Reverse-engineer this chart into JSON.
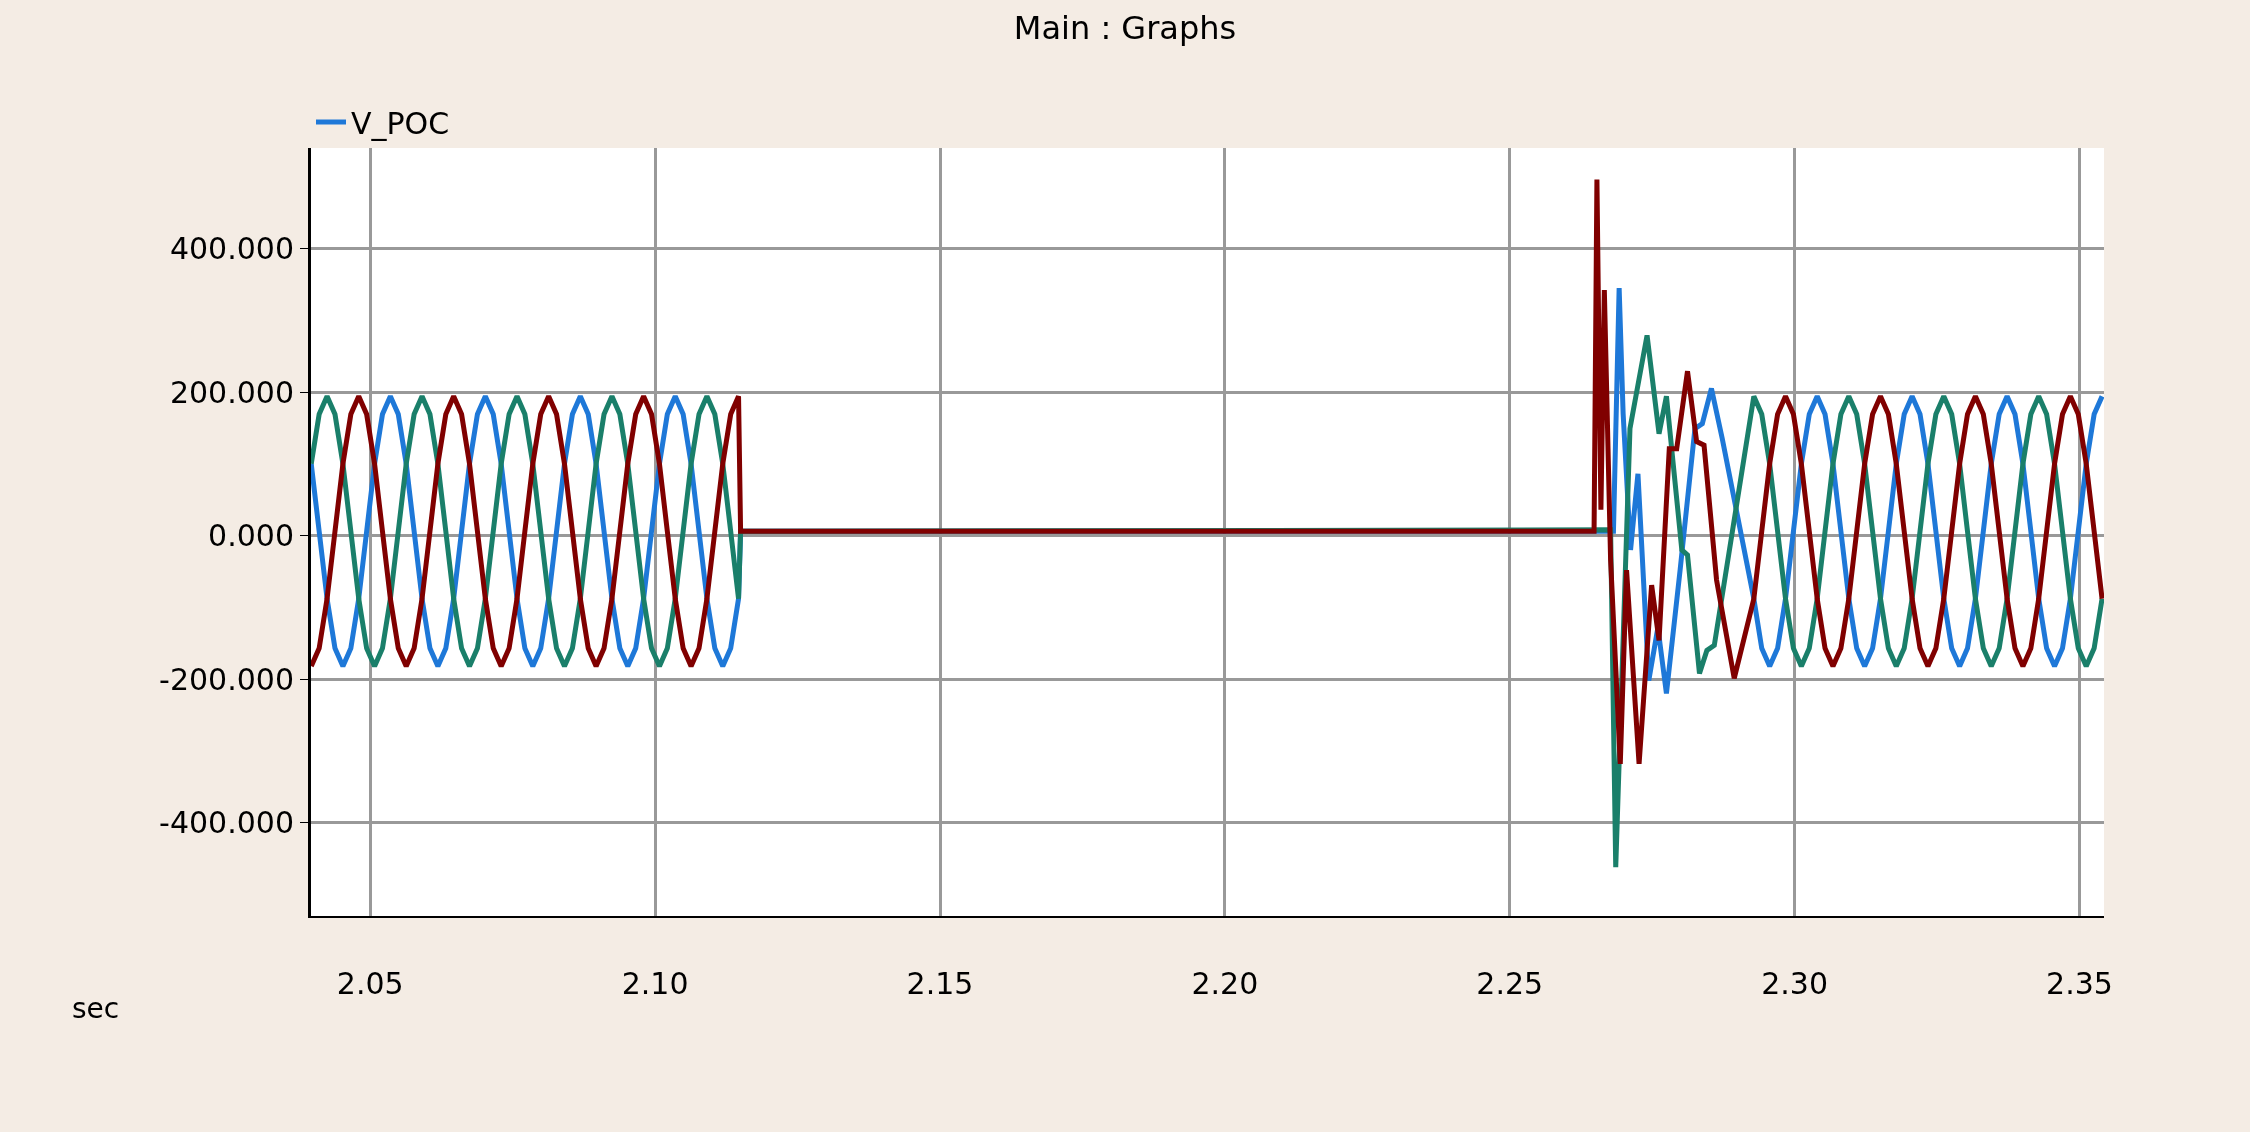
{
  "chart_data": {
    "type": "line",
    "title": "Main : Graphs",
    "xlabel": "sec",
    "legend": "top left",
    "grid": true,
    "marker": "none",
    "line_style": "solid",
    "xlim": [
      2.0396,
      2.3543
    ],
    "ylim": [
      -530,
      540
    ],
    "xticks": [
      {
        "value": 2.05,
        "label": "2.05"
      },
      {
        "value": 2.1,
        "label": "2.10"
      },
      {
        "value": 2.15,
        "label": "2.15"
      },
      {
        "value": 2.2,
        "label": "2.20"
      },
      {
        "value": 2.25,
        "label": "2.25"
      },
      {
        "value": 2.3,
        "label": "2.30"
      },
      {
        "value": 2.35,
        "label": "2.35"
      }
    ],
    "yticks": [
      {
        "value": -400,
        "label": "-400.000"
      },
      {
        "value": -200,
        "label": "-200.000"
      },
      {
        "value": 0,
        "label": "0.000"
      },
      {
        "value": 200,
        "label": "200.000"
      },
      {
        "value": 400,
        "label": "400.000"
      }
    ],
    "series": [
      {
        "name": "V_POC",
        "color": "#1e78d8",
        "x": [
          2.03964,
          2.04103,
          2.04242,
          2.04381,
          2.0452,
          2.04659,
          2.04798,
          2.04937,
          2.05076,
          2.05214,
          2.05353,
          2.05492,
          2.05631,
          2.0577,
          2.05909,
          2.06048,
          2.06187,
          2.06326,
          2.06464,
          2.06603,
          2.06742,
          2.06881,
          2.0702,
          2.07159,
          2.07298,
          2.07437,
          2.07576,
          2.07714,
          2.07853,
          2.07992,
          2.08131,
          2.0827,
          2.08409,
          2.08548,
          2.08687,
          2.08826,
          2.08964,
          2.09103,
          2.09242,
          2.09381,
          2.0952,
          2.09659,
          2.09798,
          2.09937,
          2.10076,
          2.10214,
          2.10353,
          2.10492,
          2.10631,
          2.1077,
          2.10909,
          2.11048,
          2.11187,
          2.11326,
          2.11464,
          2.115,
          2.2682,
          2.2692,
          2.2699,
          2.2712,
          2.2725,
          2.2744,
          2.276,
          2.2775,
          2.2799,
          2.2825,
          2.2838,
          2.2854,
          2.2873,
          2.29284,
          2.29423,
          2.29562,
          2.29701,
          2.2984,
          2.29979,
          2.30118,
          2.30257,
          2.30396,
          2.30534,
          2.30673,
          2.30812,
          2.30951,
          2.3109,
          2.31229,
          2.31368,
          2.31507,
          2.31646,
          2.31784,
          2.31923,
          2.32062,
          2.32201,
          2.3234,
          2.32479,
          2.32618,
          2.32757,
          2.32896,
          2.33034,
          2.33173,
          2.33312,
          2.33451,
          2.3359,
          2.33729,
          2.33868,
          2.34007,
          2.34146,
          2.34284,
          2.34423,
          2.34562,
          2.34701,
          2.3484,
          2.34979,
          2.35118,
          2.35257,
          2.35396
        ],
        "values": [
          100,
          6,
          -88,
          -157,
          -182,
          -157,
          -88,
          6,
          100,
          169,
          194,
          169,
          100,
          6,
          -88,
          -157,
          -182,
          -157,
          -88,
          6,
          100,
          169,
          194,
          169,
          100,
          6,
          -88,
          -157,
          -182,
          -157,
          -88,
          6,
          100,
          169,
          194,
          169,
          100,
          6,
          -88,
          -157,
          -182,
          -157,
          -88,
          6,
          100,
          169,
          194,
          169,
          100,
          6,
          -88,
          -157,
          -182,
          -157,
          -88,
          6,
          6,
          345,
          170,
          -20,
          86,
          -202,
          -128,
          -220,
          -48,
          149,
          156,
          205,
          135,
          -88,
          -157,
          -182,
          -157,
          -88,
          6,
          100,
          169,
          194,
          169,
          100,
          6,
          -88,
          -157,
          -182,
          -157,
          -88,
          6,
          100,
          169,
          194,
          169,
          100,
          6,
          -88,
          -157,
          -182,
          -157,
          -88,
          6,
          100,
          169,
          194,
          169,
          100,
          6,
          -88,
          -157,
          -182,
          -157,
          -88,
          6,
          100,
          169,
          194
        ]
      },
      {
        "color": "#1a7f6a",
        "x": [
          2.03964,
          2.04103,
          2.04242,
          2.04381,
          2.0452,
          2.04659,
          2.04798,
          2.04937,
          2.05076,
          2.05214,
          2.05353,
          2.05492,
          2.05631,
          2.0577,
          2.05909,
          2.06048,
          2.06187,
          2.06326,
          2.06464,
          2.06603,
          2.06742,
          2.06881,
          2.0702,
          2.07159,
          2.07298,
          2.07437,
          2.07576,
          2.07714,
          2.07853,
          2.07992,
          2.08131,
          2.0827,
          2.08409,
          2.08548,
          2.08687,
          2.08826,
          2.08964,
          2.09103,
          2.09242,
          2.09381,
          2.0952,
          2.09659,
          2.09798,
          2.09937,
          2.10076,
          2.10214,
          2.10353,
          2.10492,
          2.10631,
          2.1077,
          2.10909,
          2.11048,
          2.11187,
          2.11326,
          2.11464,
          2.115,
          2.2677,
          2.2686,
          2.2711,
          2.2741,
          2.2762,
          2.2775,
          2.2802,
          2.2812,
          2.2833,
          2.2846,
          2.2859,
          2.29284,
          2.29423,
          2.29562,
          2.29701,
          2.2984,
          2.29979,
          2.30118,
          2.30257,
          2.30396,
          2.30534,
          2.30673,
          2.30812,
          2.30951,
          2.3109,
          2.31229,
          2.31368,
          2.31507,
          2.31646,
          2.31784,
          2.31923,
          2.32062,
          2.32201,
          2.3234,
          2.32479,
          2.32618,
          2.32757,
          2.32896,
          2.33034,
          2.33173,
          2.33312,
          2.33451,
          2.3359,
          2.33729,
          2.33868,
          2.34007,
          2.34146,
          2.34284,
          2.34423,
          2.34562,
          2.34701,
          2.3484,
          2.34979,
          2.35118,
          2.35257,
          2.35396
        ],
        "values": [
          100,
          169,
          194,
          169,
          100,
          6,
          -88,
          -157,
          -182,
          -157,
          -88,
          6,
          100,
          169,
          194,
          169,
          100,
          6,
          -88,
          -157,
          -182,
          -157,
          -88,
          6,
          100,
          169,
          194,
          169,
          100,
          6,
          -88,
          -157,
          -182,
          -157,
          -88,
          6,
          100,
          169,
          194,
          169,
          100,
          6,
          -88,
          -157,
          -182,
          -157,
          -88,
          6,
          100,
          169,
          194,
          169,
          100,
          6,
          -88,
          6,
          8,
          -462,
          149,
          279,
          142,
          194,
          -20,
          -27,
          -192,
          -160,
          -153,
          194,
          169,
          100,
          6,
          -88,
          -157,
          -182,
          -157,
          -88,
          6,
          100,
          169,
          194,
          169,
          100,
          6,
          -88,
          -157,
          -182,
          -157,
          -88,
          6,
          100,
          169,
          194,
          169,
          100,
          6,
          -88,
          -157,
          -182,
          -157,
          -88,
          6,
          100,
          169,
          194,
          169,
          100,
          6,
          -88,
          -157,
          -182,
          -157,
          -88
        ]
      },
      {
        "color": "#800000",
        "x": [
          2.03964,
          2.04103,
          2.04242,
          2.04381,
          2.0452,
          2.04659,
          2.04798,
          2.04937,
          2.05076,
          2.05214,
          2.05353,
          2.05492,
          2.05631,
          2.0577,
          2.05909,
          2.06048,
          2.06187,
          2.06326,
          2.06464,
          2.06603,
          2.06742,
          2.06881,
          2.0702,
          2.07159,
          2.07298,
          2.07437,
          2.07576,
          2.07714,
          2.07853,
          2.07992,
          2.08131,
          2.0827,
          2.08409,
          2.08548,
          2.08687,
          2.08826,
          2.08964,
          2.09103,
          2.09242,
          2.09381,
          2.0952,
          2.09659,
          2.09798,
          2.09937,
          2.10076,
          2.10214,
          2.10353,
          2.10492,
          2.10631,
          2.1077,
          2.10909,
          2.11048,
          2.11187,
          2.11326,
          2.11464,
          2.115,
          2.2648,
          2.2653,
          2.266,
          2.2666,
          2.2677,
          2.2694,
          2.2705,
          2.2727,
          2.2749,
          2.2762,
          2.278,
          2.2793,
          2.2812,
          2.2828,
          2.2841,
          2.2863,
          2.2894,
          2.29284,
          2.29423,
          2.29562,
          2.29701,
          2.2984,
          2.29979,
          2.30118,
          2.30257,
          2.30396,
          2.30534,
          2.30673,
          2.30812,
          2.30951,
          2.3109,
          2.31229,
          2.31368,
          2.31507,
          2.31646,
          2.31784,
          2.31923,
          2.32062,
          2.32201,
          2.3234,
          2.32479,
          2.32618,
          2.32757,
          2.32896,
          2.33034,
          2.33173,
          2.33312,
          2.33451,
          2.3359,
          2.33729,
          2.33868,
          2.34007,
          2.34146,
          2.34284,
          2.34423,
          2.34562,
          2.34701,
          2.3484,
          2.34979,
          2.35118,
          2.35257,
          2.35396
        ],
        "values": [
          -182,
          -157,
          -88,
          6,
          100,
          169,
          194,
          169,
          100,
          6,
          -88,
          -157,
          -182,
          -157,
          -88,
          6,
          100,
          169,
          194,
          169,
          100,
          6,
          -88,
          -157,
          -182,
          -157,
          -88,
          6,
          100,
          169,
          194,
          169,
          100,
          6,
          -88,
          -157,
          -182,
          -157,
          -88,
          6,
          100,
          169,
          194,
          169,
          100,
          6,
          -88,
          -157,
          -182,
          -157,
          -88,
          6,
          100,
          169,
          194,
          6,
          6,
          496,
          36,
          342,
          -34,
          -318,
          -48,
          -318,
          -69,
          -146,
          121,
          121,
          229,
          131,
          126,
          -62,
          -199,
          -88,
          6,
          100,
          169,
          194,
          169,
          100,
          6,
          -88,
          -157,
          -182,
          -157,
          -88,
          6,
          100,
          169,
          194,
          169,
          100,
          6,
          -88,
          -157,
          -182,
          -157,
          -88,
          6,
          100,
          169,
          194,
          169,
          100,
          6,
          -88,
          -157,
          -182,
          -157,
          -88,
          6,
          100,
          169,
          194,
          169,
          100,
          6,
          -88
        ]
      }
    ]
  }
}
